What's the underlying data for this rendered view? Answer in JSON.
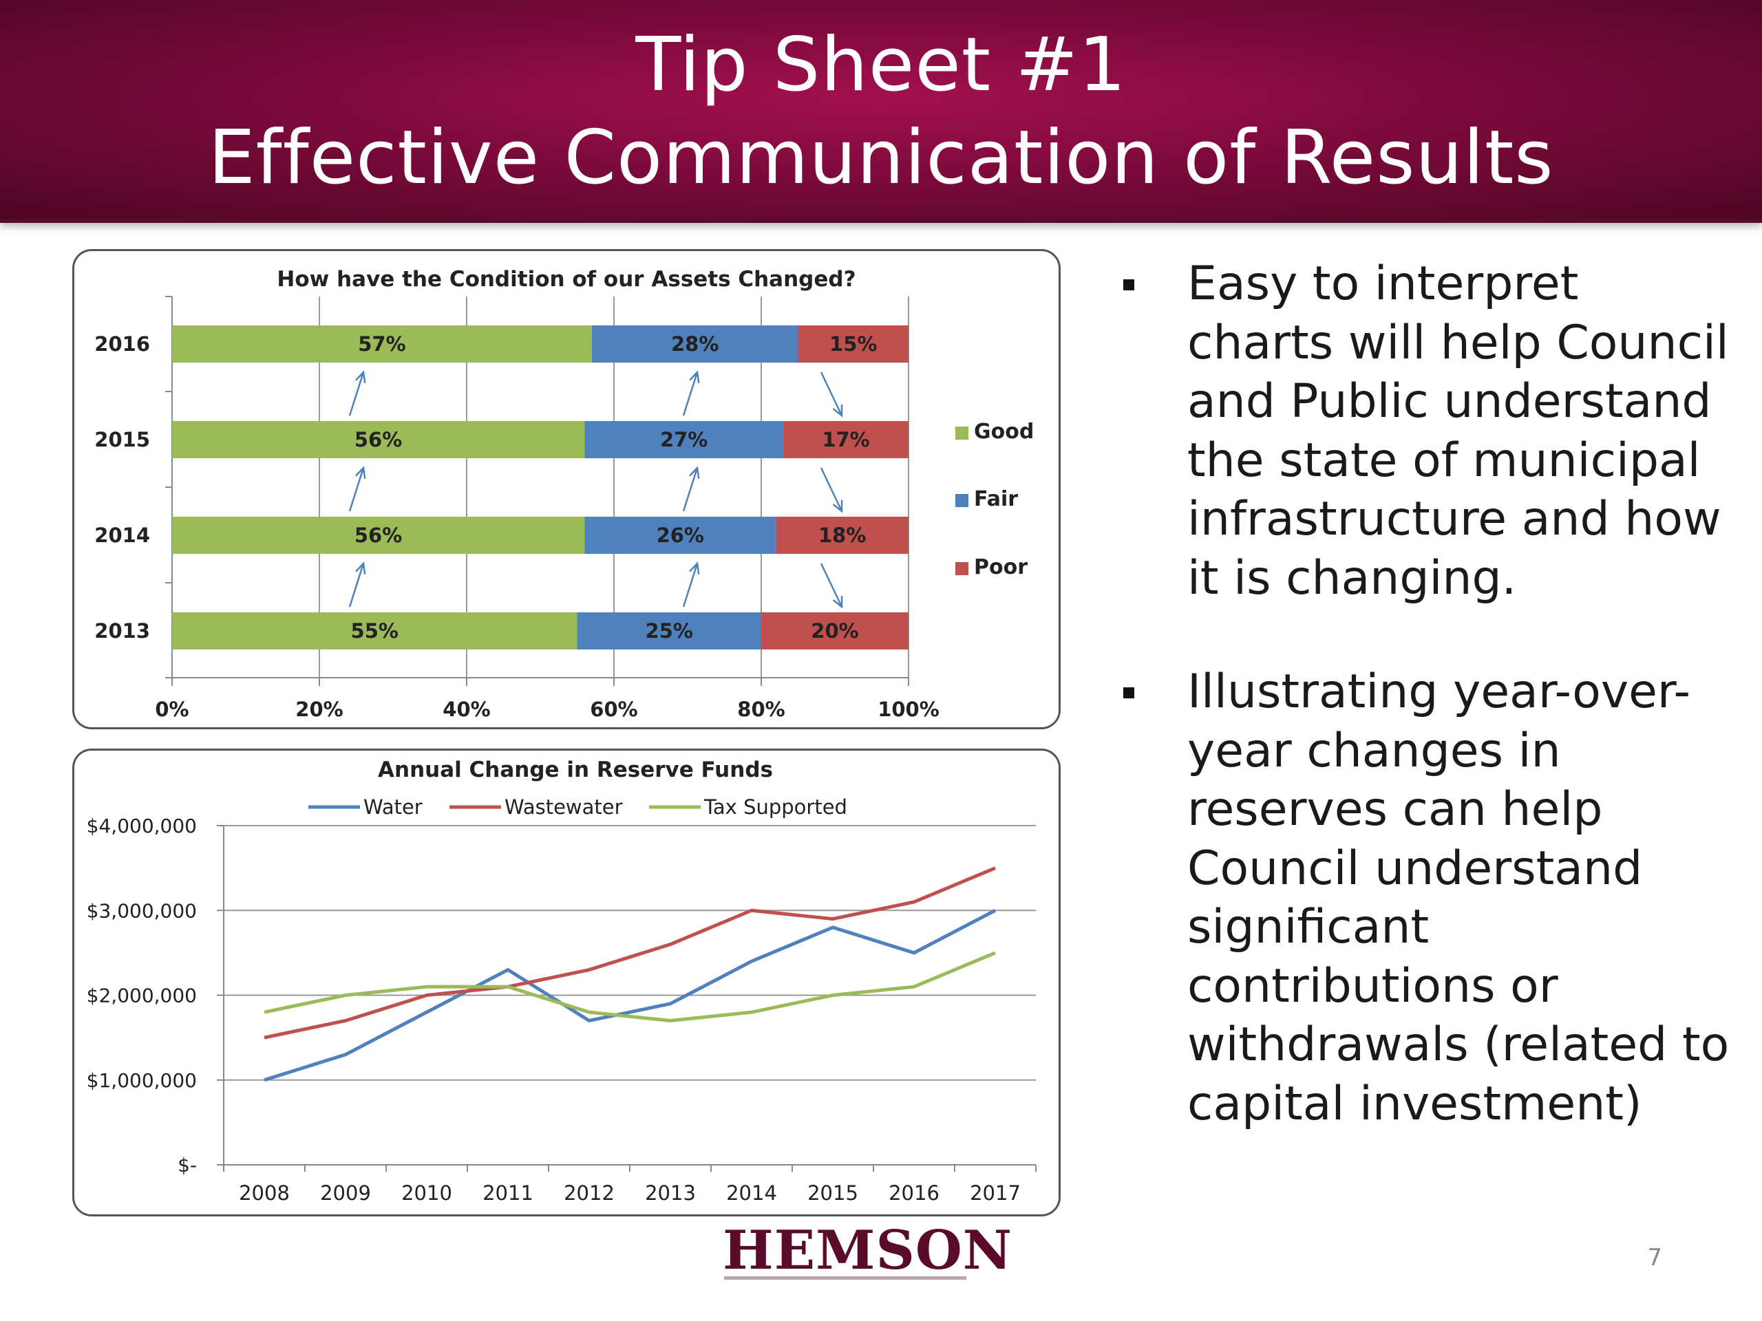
{
  "header": {
    "title_line1": "Tip Sheet #1",
    "title_line2": "Effective Communication of Results"
  },
  "bullets": [
    "Easy to interpret charts will help Council and Public understand the state of municipal infrastructure and how it is changing.",
    "Illustrating year-over-year changes in reserves can help Council understand significant contributions or withdrawals (related to capital investment)"
  ],
  "logo_text": "HEMSON",
  "page_number": "7",
  "colors": {
    "good": "#9bbb59",
    "fair": "#4f81bd",
    "poor": "#c0504d",
    "header": "#7d0a3c",
    "arrow": "#4f81bd"
  },
  "chart_data": [
    {
      "type": "bar",
      "orientation": "horizontal",
      "stacked": "percent",
      "title": "How have the Condition of our Assets Changed?",
      "categories": [
        "2016",
        "2015",
        "2014",
        "2013"
      ],
      "series": [
        {
          "name": "Good",
          "values": [
            57,
            56,
            56,
            55
          ],
          "labels": [
            "57%",
            "56%",
            "56%",
            "55%"
          ]
        },
        {
          "name": "Fair",
          "values": [
            28,
            27,
            26,
            25
          ],
          "labels": [
            "28%",
            "27%",
            "26%",
            "25%"
          ]
        },
        {
          "name": "Poor",
          "values": [
            15,
            17,
            18,
            20
          ],
          "labels": [
            "15%",
            "17%",
            "18%",
            "20%"
          ]
        }
      ],
      "xlim": [
        0,
        100
      ],
      "x_ticks": [
        "0%",
        "20%",
        "40%",
        "60%",
        "80%",
        "100%"
      ],
      "legend": "right",
      "annotations": "trend arrows between years: Good up, Fair up, Poor down"
    },
    {
      "type": "line",
      "title": "Annual Change in Reserve Funds",
      "x": [
        "2008",
        "2009",
        "2010",
        "2011",
        "2012",
        "2013",
        "2014",
        "2015",
        "2016",
        "2017"
      ],
      "series": [
        {
          "name": "Water",
          "values": [
            1000000,
            1300000,
            1800000,
            2300000,
            1700000,
            1900000,
            2400000,
            2800000,
            2500000,
            3000000
          ]
        },
        {
          "name": "Wastewater",
          "values": [
            1500000,
            1700000,
            2000000,
            2100000,
            2300000,
            2600000,
            3000000,
            2900000,
            3100000,
            3500000
          ]
        },
        {
          "name": "Tax Supported",
          "values": [
            1800000,
            2000000,
            2100000,
            2100000,
            1800000,
            1700000,
            1800000,
            2000000,
            2100000,
            2500000
          ]
        }
      ],
      "ylim": [
        0,
        4000000
      ],
      "y_ticks": [
        "$-",
        "$1,000,000",
        "$2,000,000",
        "$3,000,000",
        "$4,000,000"
      ],
      "grid": true,
      "legend": "top"
    }
  ]
}
